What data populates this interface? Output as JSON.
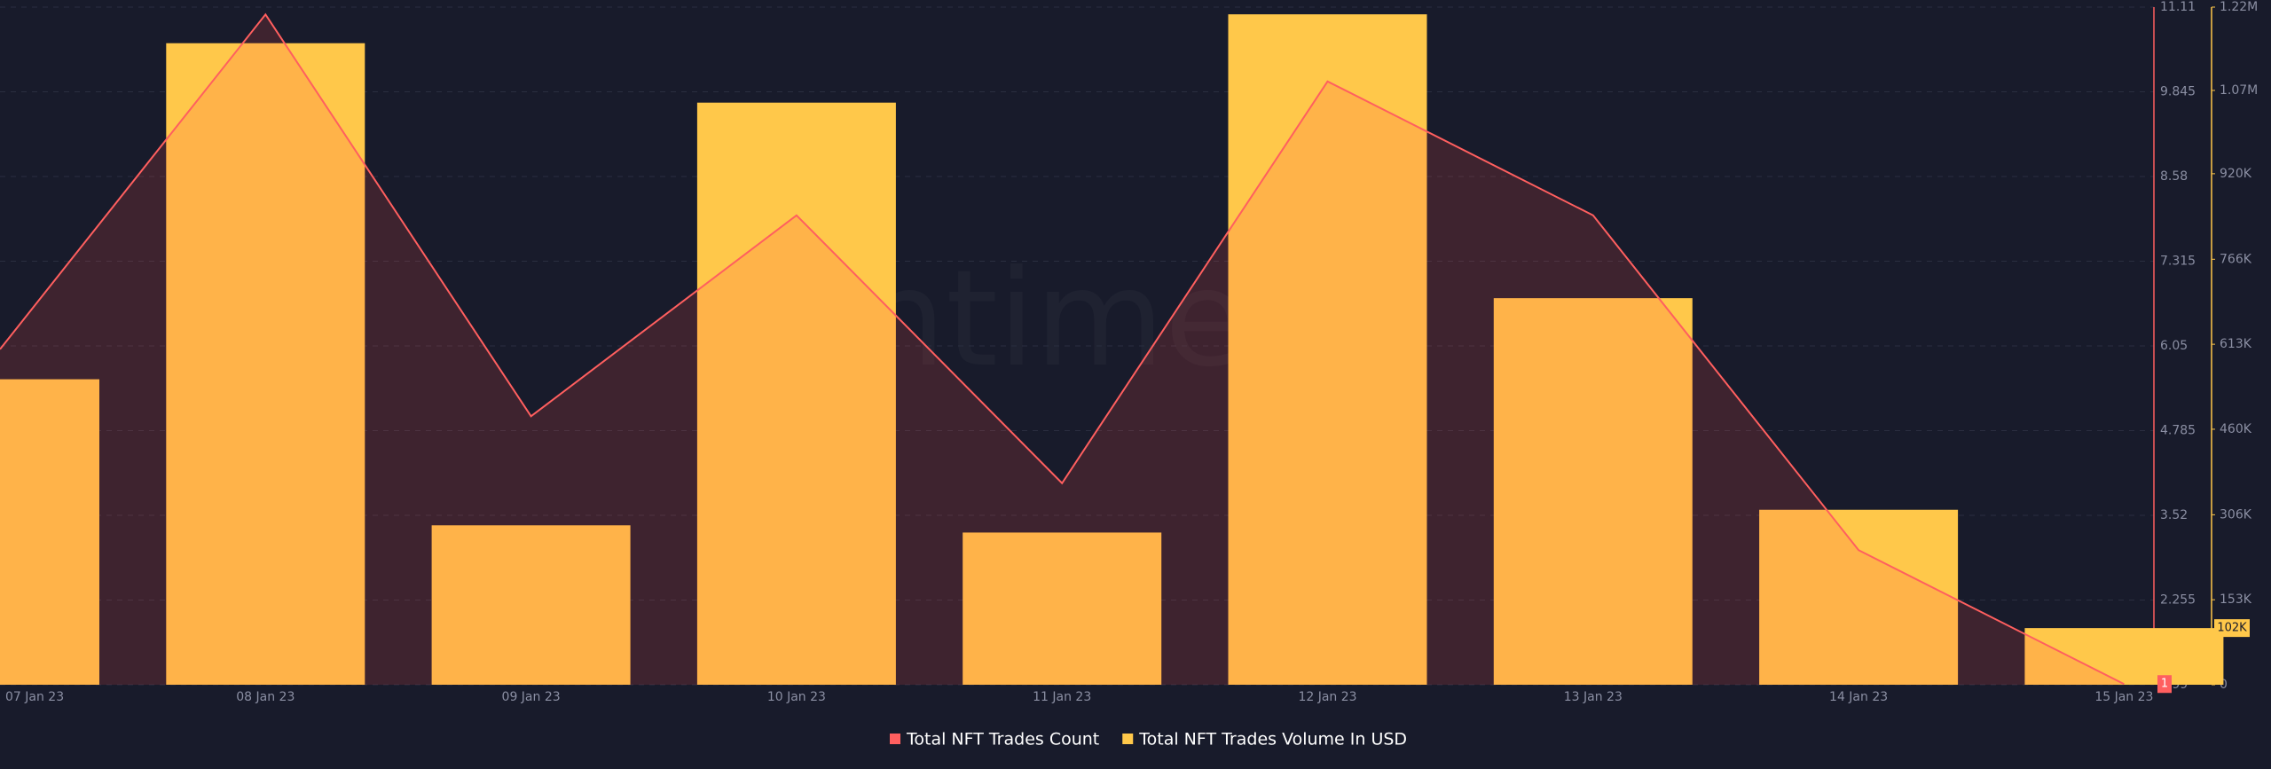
{
  "chart_data": {
    "type": "bar-line",
    "watermark": "santiment",
    "categories": [
      "07 Jan 23",
      "08 Jan 23",
      "09 Jan 23",
      "10 Jan 23",
      "11 Jan 23",
      "12 Jan 23",
      "13 Jan 23",
      "14 Jan 23",
      "15 Jan 23"
    ],
    "series": [
      {
        "name": "Total NFT Trades Count",
        "type": "line",
        "axis": "y",
        "color": "#ff5f5f",
        "values": [
          6,
          11,
          5,
          8,
          4,
          10,
          8,
          3,
          1
        ],
        "value_labels": [
          null,
          null,
          null,
          null,
          null,
          null,
          null,
          null,
          "1"
        ]
      },
      {
        "name": "Total NFT Trades Volume In USD",
        "type": "bar",
        "axis": "y2",
        "color": "#ffc84a",
        "values": [
          550000,
          1155000,
          287000,
          1048000,
          274000,
          1207000,
          696000,
          315000,
          102000
        ],
        "value_labels": [
          null,
          null,
          null,
          null,
          null,
          null,
          null,
          null,
          "102K"
        ]
      }
    ],
    "ylim": [
      0.99,
      11.11
    ],
    "yticks": [
      0.99,
      2.255,
      3.52,
      4.785,
      6.05,
      7.315,
      8.58,
      9.845,
      11.11
    ],
    "y2lim": [
      0,
      1220000
    ],
    "y2ticks": [
      0,
      {
        "value": 153000,
        "label": "153K"
      },
      {
        "value": 306000,
        "label": "306K"
      },
      {
        "value": 460000,
        "label": "460K"
      },
      {
        "value": 613000,
        "label": "613K"
      },
      {
        "value": 766000,
        "label": "766K"
      },
      {
        "value": 920000,
        "label": "920K"
      },
      {
        "value": 1070000,
        "label": "1.07M"
      },
      {
        "value": 1220000,
        "label": "1.22M"
      }
    ],
    "grid": true,
    "legend": "bottom"
  }
}
